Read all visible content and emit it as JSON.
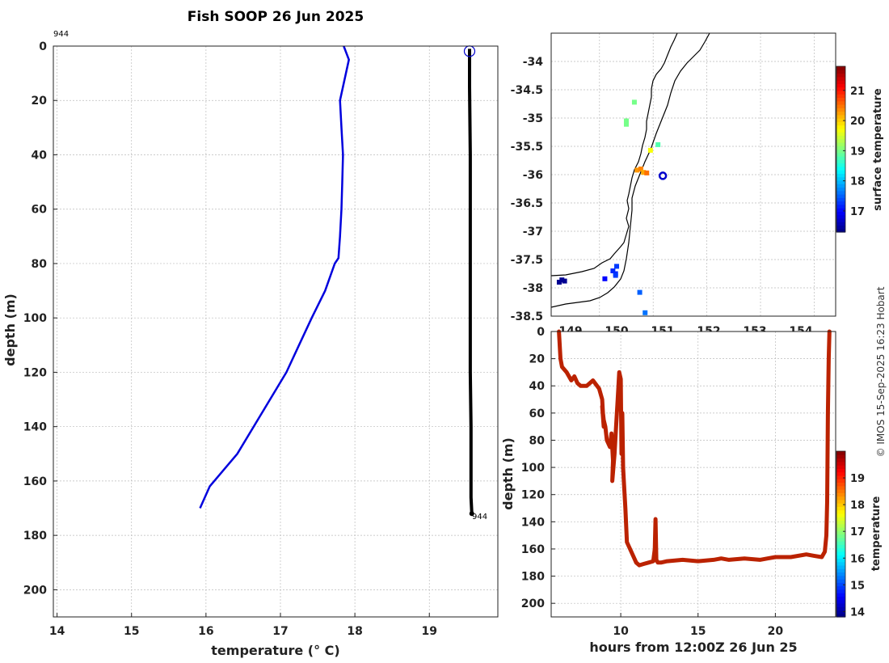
{
  "page_title": "Fish SOOP 26 Jun 2025",
  "credit": "© IMOS 15-Sep-2025 16:23 Hobart",
  "profile_id_top": "944",
  "profile_id_bottom": "944",
  "colors": {
    "profile_line": "#0000dd",
    "depth_line": "#bb2200",
    "marker": "#0000cc",
    "coast": "#000000"
  },
  "chart_data": [
    {
      "type": "line",
      "name": "temperature-profile",
      "xlabel": "temperature (° C)",
      "ylabel": "depth (m)",
      "xlim": [
        13.95,
        19.92
      ],
      "ylim": [
        210,
        0
      ],
      "xticks": [
        14,
        15,
        16,
        17,
        18,
        19
      ],
      "yticks": [
        0,
        20,
        40,
        60,
        80,
        100,
        120,
        140,
        160,
        180,
        200
      ],
      "grid": true,
      "series": [
        {
          "name": "climatology",
          "color": "#0000dd",
          "x": [
            17.85,
            17.92,
            17.8,
            17.82,
            17.84,
            17.83,
            17.82,
            17.8,
            17.78,
            17.73,
            17.6,
            17.42,
            17.25,
            17.08,
            16.75,
            16.42,
            16.05,
            15.92
          ],
          "y": [
            0,
            5,
            20,
            30,
            40,
            50,
            60,
            70,
            78,
            80,
            90,
            100,
            110,
            120,
            135,
            150,
            162,
            170
          ]
        },
        {
          "name": "observed",
          "color": "#000000",
          "x": [
            19.54,
            19.54,
            19.55,
            19.55,
            19.55,
            19.55,
            19.55,
            19.56,
            19.56,
            19.56,
            19.57
          ],
          "y": [
            1,
            15,
            40,
            60,
            80,
            100,
            120,
            140,
            160,
            166,
            172
          ]
        }
      ]
    },
    {
      "type": "scatter",
      "name": "location-map",
      "xlabel": "",
      "ylabel": "",
      "xlim": [
        149.6,
        154.9
      ],
      "ylim": [
        -38.5,
        -33.5
      ],
      "xticks": [
        149,
        150,
        151,
        152,
        153,
        154
      ],
      "xtick_labels": [
        "149",
        "150",
        "151",
        "152",
        "153",
        "154"
      ],
      "yticks": [
        -34,
        -34.5,
        -35,
        -35.5,
        -36,
        -36.5,
        -37,
        -37.5,
        -38,
        -38.5
      ],
      "grid": true,
      "colorbar": {
        "label": "surface temperature",
        "range": [
          16.3,
          21.8
        ],
        "ticks": [
          17,
          18,
          19,
          20,
          21
        ]
      },
      "points": [
        {
          "lon": 151.15,
          "lat": -34.72,
          "value": 19.0
        },
        {
          "lon": 151.0,
          "lat": -35.05,
          "value": 19.0
        },
        {
          "lon": 151.0,
          "lat": -35.11,
          "value": 19.0
        },
        {
          "lon": 151.45,
          "lat": -35.57,
          "value": 19.7
        },
        {
          "lon": 151.59,
          "lat": -35.47,
          "value": 18.8
        },
        {
          "lon": 151.2,
          "lat": -35.92,
          "value": 20.3
        },
        {
          "lon": 151.27,
          "lat": -35.9,
          "value": 20.4
        },
        {
          "lon": 151.32,
          "lat": -35.96,
          "value": 20.2
        },
        {
          "lon": 151.38,
          "lat": -35.97,
          "value": 20.5
        },
        {
          "lon": 150.82,
          "lat": -37.62,
          "value": 17.3
        },
        {
          "lon": 150.75,
          "lat": -37.7,
          "value": 17.2
        },
        {
          "lon": 150.8,
          "lat": -37.75,
          "value": 17.2
        },
        {
          "lon": 150.8,
          "lat": -37.78,
          "value": 17.3
        },
        {
          "lon": 150.6,
          "lat": -37.84,
          "value": 17.0
        },
        {
          "lon": 151.25,
          "lat": -38.08,
          "value": 17.5
        },
        {
          "lon": 151.35,
          "lat": -38.44,
          "value": 17.6
        },
        {
          "lon": 149.8,
          "lat": -37.86,
          "value": 16.4
        },
        {
          "lon": 149.75,
          "lat": -37.9,
          "value": 16.4
        },
        {
          "lon": 149.85,
          "lat": -37.88,
          "value": 16.4
        }
      ],
      "profile_location": {
        "lon": 151.68,
        "lat": -36.02
      }
    },
    {
      "type": "line",
      "name": "depth-timeseries",
      "xlabel": "hours from 12:00Z 26 Jun 25",
      "ylabel": "depth (m)",
      "xlim": [
        5.5,
        23.9
      ],
      "ylim": [
        210,
        0
      ],
      "xticks": [
        10,
        15,
        20
      ],
      "yticks": [
        0,
        20,
        40,
        60,
        80,
        100,
        120,
        140,
        160,
        180,
        200
      ],
      "grid": true,
      "colorbar": {
        "label": "temperature",
        "range": [
          13.8,
          20.0
        ],
        "ticks": [
          14,
          15,
          16,
          17,
          18,
          19
        ]
      },
      "series": [
        {
          "name": "depth",
          "color": "#bb2200",
          "x": [
            6.0,
            6.1,
            6.2,
            6.5,
            6.8,
            7.0,
            7.2,
            7.4,
            7.8,
            8.2,
            8.6,
            8.8,
            8.9,
            8.8,
            8.9,
            9.0,
            9.1,
            9.3,
            9.4,
            9.5,
            9.45,
            9.6,
            9.7,
            9.8,
            9.9,
            10.0,
            10.05,
            10.1,
            10.15,
            10.2,
            10.3,
            10.4,
            10.6,
            10.8,
            11.0,
            11.2,
            11.5,
            11.8,
            12.1,
            12.2,
            12.25,
            12.3,
            12.4,
            12.6,
            13.0,
            14.0,
            15.0,
            16.0,
            16.5,
            17.0,
            18.0,
            19.0,
            19.5,
            20.0,
            21.0,
            22.0,
            22.5,
            23.0,
            23.2,
            23.3,
            23.35,
            23.4,
            23.45,
            23.5
          ],
          "y": [
            0,
            20,
            26,
            30,
            36,
            33,
            38,
            40,
            40,
            36,
            42,
            50,
            70,
            55,
            65,
            70,
            80,
            85,
            75,
            95,
            110,
            90,
            70,
            50,
            30,
            35,
            90,
            60,
            100,
            110,
            130,
            155,
            160,
            165,
            170,
            172,
            171,
            170,
            169,
            160,
            138,
            168,
            170,
            170,
            169,
            168,
            169,
            168,
            167,
            168,
            167,
            168,
            167,
            166,
            166,
            164,
            165,
            166,
            162,
            150,
            125,
            60,
            20,
            0
          ]
        }
      ]
    }
  ]
}
